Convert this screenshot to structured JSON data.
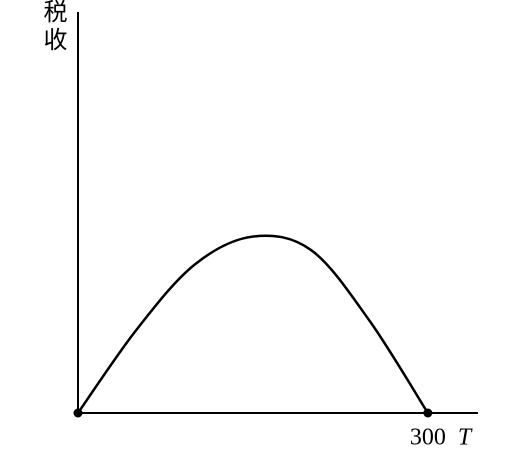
{
  "chart_data": {
    "type": "line",
    "y_label": "税收",
    "x_label": "T",
    "x": [
      0,
      50,
      100,
      150,
      200,
      250,
      300
    ],
    "series": [
      {
        "color": "#000000",
        "values": [
          0,
          20.7,
          37,
          44,
          40.6,
          23,
          0
        ]
      }
    ],
    "xlim": [
      0,
      343
    ],
    "xticks": [
      300
    ],
    "ylim": [
      0,
      100
    ]
  }
}
